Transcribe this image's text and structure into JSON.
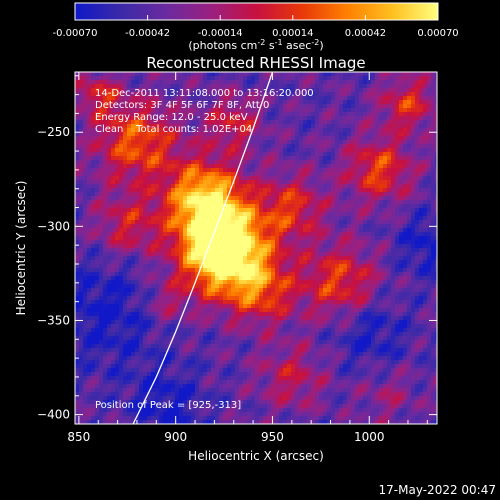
{
  "colorbar": {
    "tick_labels": [
      "-0.00070",
      "-0.00042",
      "-0.00014",
      "0.00014",
      "0.00042",
      "0.00070"
    ],
    "tick_values": [
      -0.0007,
      -0.00042,
      -0.00014,
      0.00014,
      0.00042,
      0.0007
    ],
    "range": [
      -0.0007,
      0.0007
    ],
    "units_prefix": "(photons cm",
    "units_exp1": "-2",
    "units_mid": " s",
    "units_exp2": "-1",
    "units_end": " asec",
    "units_exp3": "-2",
    "units_close": ")",
    "gradient": [
      "#1018c8",
      "#3a2aa8",
      "#6a2aa0",
      "#9a2080",
      "#c81040",
      "#e83808",
      "#ff8000",
      "#ffc020",
      "#ffff80"
    ]
  },
  "chart_data": {
    "type": "heatmap",
    "title": "Reconstructed RHESSI Image",
    "xlabel": "Heliocentric X (arcsec)",
    "ylabel": "Heliocentric Y (arcsec)",
    "xlim": [
      848,
      1035
    ],
    "ylim": [
      -405,
      -218
    ],
    "x_ticks": [
      850,
      900,
      950,
      1000
    ],
    "x_tick_labels": [
      "850",
      "900",
      "950",
      "1000"
    ],
    "y_ticks": [
      -250,
      -300,
      -350,
      -400
    ],
    "y_tick_labels": [
      "−250",
      "−300",
      "−350",
      "−400"
    ],
    "info_lines": [
      "14-Dec-2011 13:11:08.000 to 13:16:20.000",
      "Detectors: 3F 4F 5F 6F 7F 8F, Att 0",
      "Energy Range: 12.0 - 25.0 keV",
      "Clean    Total counts: 1.02E+04"
    ],
    "peak_label": "Position of Peak = [925,-313]",
    "peak": [
      925,
      -313
    ],
    "limb_curve": [
      [
        878,
        -405
      ],
      [
        890,
        -380
      ],
      [
        900,
        -356
      ],
      [
        910,
        -330
      ],
      [
        920,
        -303
      ],
      [
        930,
        -276
      ],
      [
        940,
        -248
      ],
      [
        950,
        -218
      ]
    ],
    "limb_color": "#ffffff"
  },
  "footer": {
    "timestamp": "17-May-2022 00:47"
  }
}
